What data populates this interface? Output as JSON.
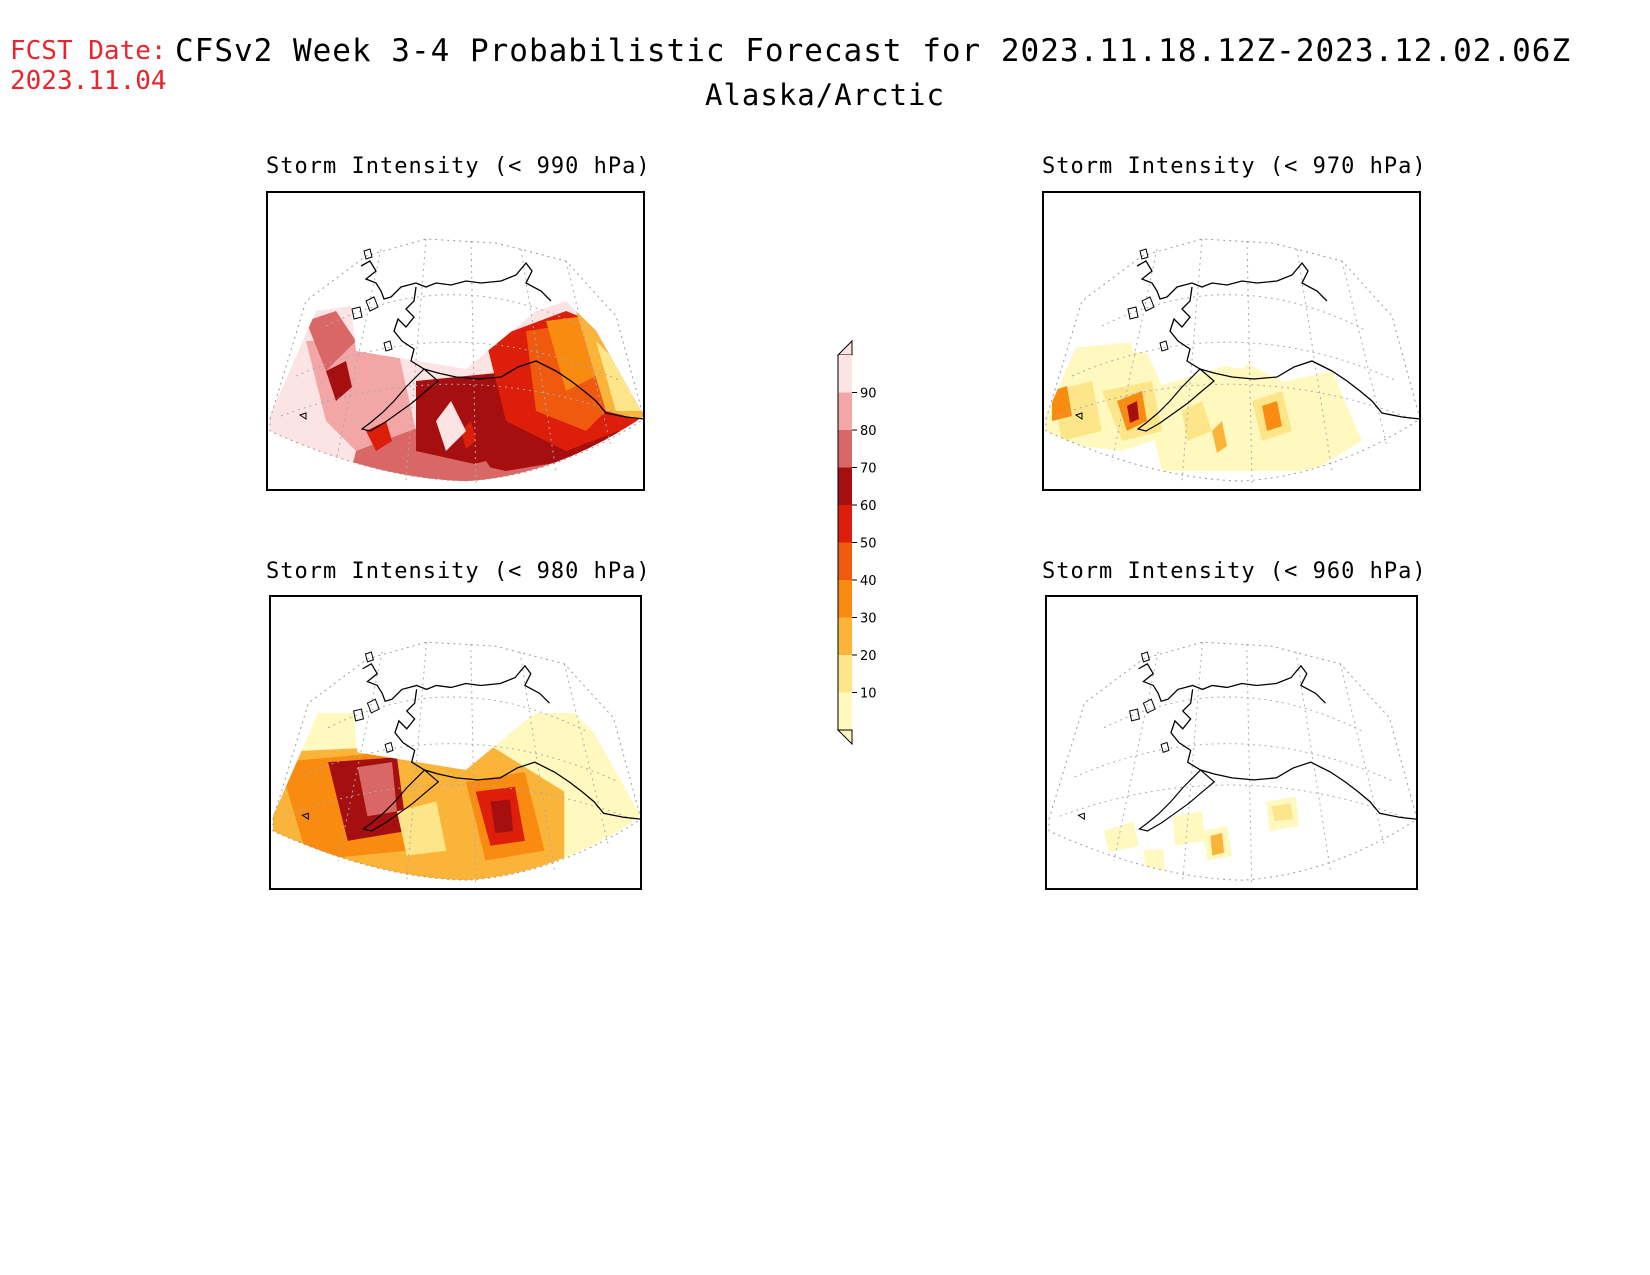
{
  "header": {
    "fcst_label": "FCST Date:",
    "fcst_date": "2023.11.04",
    "title": "CFSv2 Week 3-4 Probabilistic Forecast for 2023.11.18.12Z-2023.12.02.06Z",
    "subtitle": "Alaska/Arctic"
  },
  "panels": [
    {
      "title": "Storm Intensity (< 990 hPa)",
      "intensity": "strong"
    },
    {
      "title": "Storm Intensity (< 970 hPa)",
      "intensity": "light"
    },
    {
      "title": "Storm Intensity (< 980 hPa)",
      "intensity": "medium"
    },
    {
      "title": "Storm Intensity (< 960 hPa)",
      "intensity": "faint"
    }
  ],
  "colorbar": {
    "levels": [
      "10",
      "20",
      "30",
      "40",
      "50",
      "60",
      "70",
      "80",
      "90"
    ],
    "colors": [
      "#fff9c0",
      "#fde68a",
      "#fbb43a",
      "#f98c10",
      "#ef5a0e",
      "#dc1e0a",
      "#a50f0f",
      "#d96766",
      "#f2a6a6",
      "#fce4e4"
    ]
  }
}
